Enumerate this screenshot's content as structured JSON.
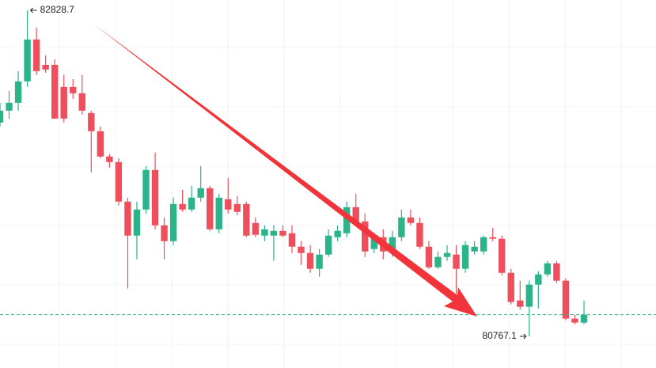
{
  "chart_data": {
    "type": "candlestick",
    "up_color": "#2bb38a",
    "down_color": "#ee4f5c",
    "open": [
      82119,
      82194,
      82244,
      82379,
      82644,
      82484,
      82484,
      82344,
      82344,
      82304,
      82179,
      82064,
      81904,
      81869,
      81619,
      81404,
      81569,
      81819,
      81469,
      81369,
      81604,
      81569,
      81644,
      81704,
      81444,
      81634,
      81604,
      81604,
      81484,
      81404,
      81404,
      81434,
      81419,
      81334,
      81294,
      81194,
      81284,
      81394,
      81419,
      81584,
      81494,
      81319,
      81394,
      81304,
      81394,
      81519,
      81484,
      81334,
      81204,
      81269,
      81284,
      81194,
      81304,
      81304,
      81394,
      81384,
      81169,
      80994,
      80954,
      81094,
      81159,
      81229,
      81119,
      80879,
      80854
    ],
    "high": [
      82244,
      82319,
      82444,
      82828.7,
      82719,
      82544,
      82519,
      82419,
      82394,
      82419,
      82194,
      82094,
      81919,
      81894,
      81644,
      81619,
      81844,
      81929,
      81519,
      81644,
      81694,
      81719,
      81844,
      81719,
      81669,
      81769,
      81654,
      81619,
      81519,
      81469,
      81469,
      81469,
      81469,
      81369,
      81344,
      81319,
      81444,
      81469,
      81619,
      81669,
      81544,
      81419,
      81444,
      81434,
      81569,
      81569,
      81519,
      81369,
      81304,
      81344,
      81344,
      81369,
      81369,
      81404,
      81454,
      81404,
      81194,
      81119,
      81119,
      81179,
      81244,
      81244,
      81134,
      80904,
      80994
    ],
    "low": [
      82094,
      82144,
      82194,
      82344,
      82419,
      82434,
      82144,
      82119,
      82269,
      82169,
      81804,
      81894,
      81834,
      81594,
      81069,
      81254,
      81544,
      81444,
      81254,
      81344,
      81554,
      81554,
      81619,
      81434,
      81419,
      81544,
      81534,
      81394,
      81394,
      81369,
      81244,
      81394,
      81294,
      81219,
      81169,
      81144,
      81269,
      81369,
      81394,
      81469,
      81269,
      81294,
      81254,
      81269,
      81369,
      81469,
      81319,
      81194,
      81194,
      81244,
      81034,
      81169,
      81284,
      81284,
      81369,
      81154,
      80969,
      80934,
      80767.1,
      80944,
      81144,
      81104,
      80869,
      80844,
      80844
    ],
    "close": [
      82194,
      82244,
      82379,
      82644,
      82444,
      82454,
      82144,
      82144,
      82304,
      82194,
      82064,
      81904,
      81869,
      81619,
      81404,
      81569,
      81819,
      81469,
      81369,
      81604,
      81569,
      81644,
      81704,
      81444,
      81644,
      81569,
      81554,
      81404,
      81409,
      81444,
      81434,
      81404,
      81334,
      81294,
      81194,
      81284,
      81404,
      81434,
      81584,
      81494,
      81304,
      81394,
      81304,
      81394,
      81519,
      81484,
      81334,
      81204,
      81269,
      81294,
      81194,
      81344,
      81334,
      81394,
      81384,
      81169,
      80984,
      80954,
      81094,
      81159,
      81229,
      81119,
      80879,
      80854,
      80904
    ],
    "high_label": 82828.7,
    "low_label": 80767.1
  }
}
